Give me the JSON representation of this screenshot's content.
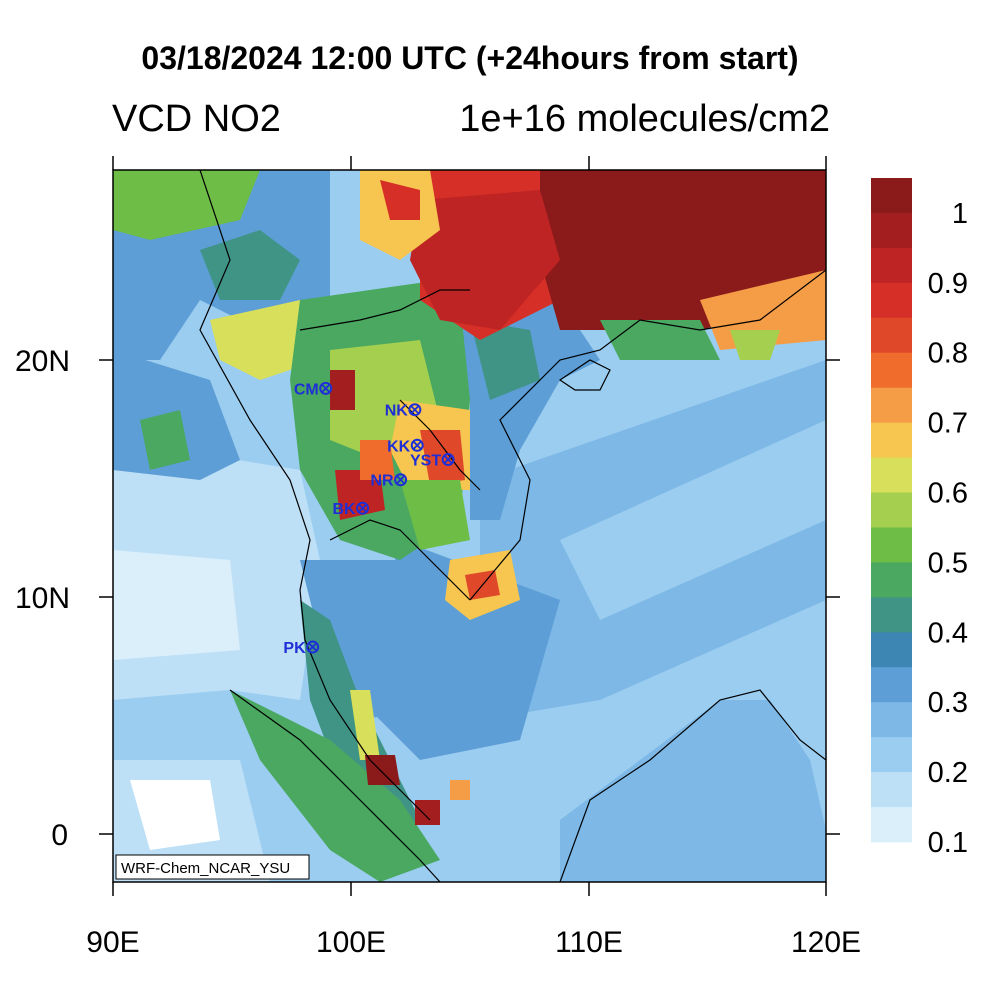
{
  "title": "03/18/2024 12:00 UTC (+24hours from start)",
  "variable": "VCD NO2",
  "units": "1e+16 molecules/cm2",
  "credit": "WRF-Chem_NCAR_YSU",
  "x_ticks": [
    "90E",
    "100E",
    "110E",
    "120E"
  ],
  "y_ticks": [
    "20N",
    "10N",
    "0"
  ],
  "colorbar": {
    "labels": [
      "1",
      "0.9",
      "0.8",
      "0.7",
      "0.6",
      "0.5",
      "0.4",
      "0.3",
      "0.2",
      "0.1"
    ],
    "colors": [
      "#8b1a1a",
      "#a31f1f",
      "#bf2424",
      "#d62f27",
      "#e0482a",
      "#f06c2c",
      "#f59c47",
      "#f6c650",
      "#d8df5a",
      "#a5cf4e",
      "#6dbd47",
      "#4aa861",
      "#3f9486",
      "#3d86b4",
      "#5d9ed6",
      "#7db8e6",
      "#9bcdf0",
      "#bde0f7",
      "#dbeffb"
    ]
  },
  "stations": [
    {
      "code": "CM"
    },
    {
      "code": "NK"
    },
    {
      "code": "KK"
    },
    {
      "code": "YST"
    },
    {
      "code": "NR"
    },
    {
      "code": "BK"
    },
    {
      "code": "PK"
    }
  ],
  "station_color": "#1f2fd6"
}
